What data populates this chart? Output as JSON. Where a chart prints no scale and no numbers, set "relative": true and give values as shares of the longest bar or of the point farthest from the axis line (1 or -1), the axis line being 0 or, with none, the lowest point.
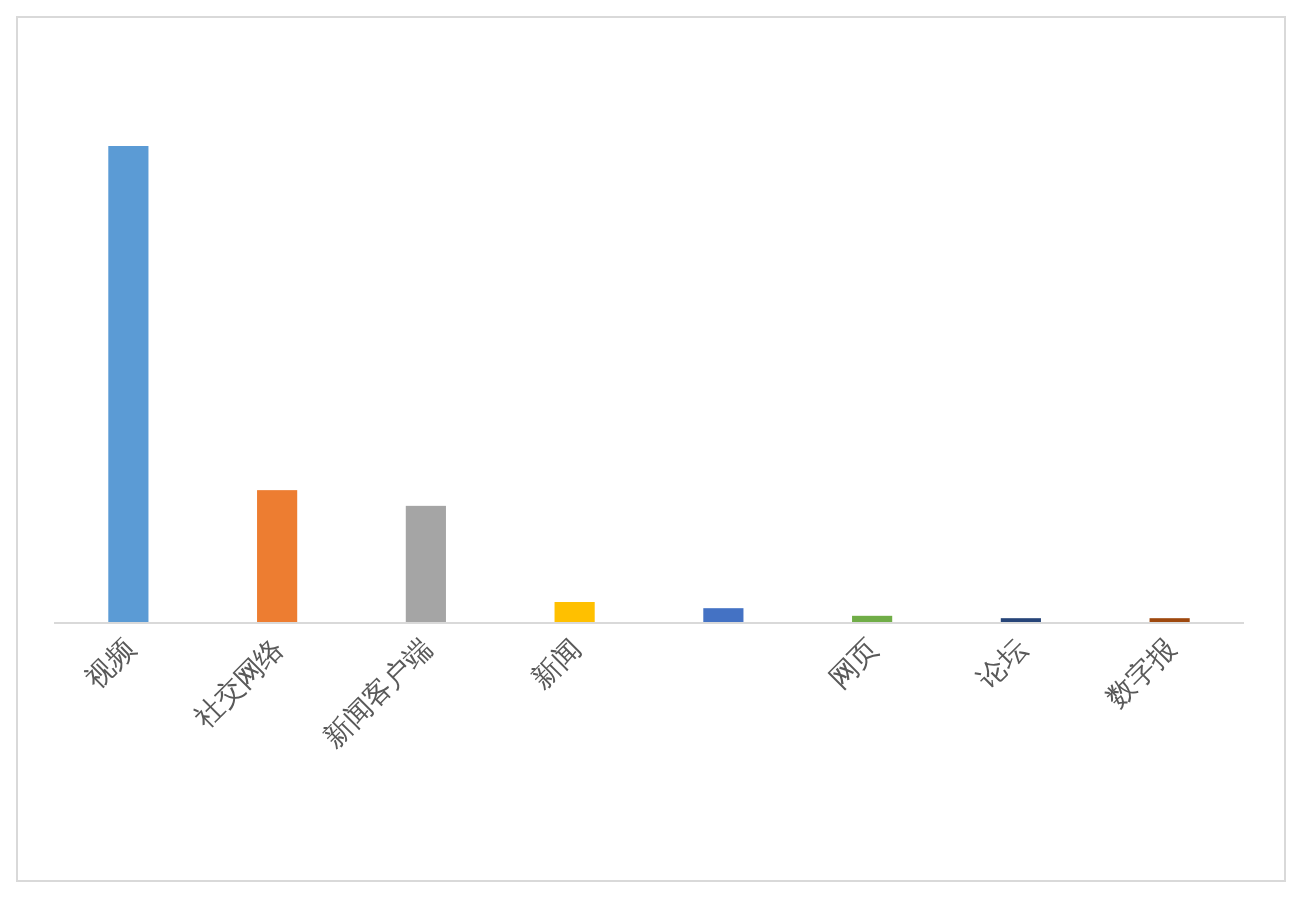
{
  "chart_data": {
    "type": "bar",
    "relative": true,
    "categories": [
      "视频",
      "社交网络",
      "新闻客户端",
      "新闻",
      null,
      "网页",
      "论坛",
      "数字报"
    ],
    "values": [
      1,
      0.277,
      0.244,
      0.042,
      0.029,
      0.013,
      0.008,
      0.008
    ],
    "colors": [
      "#5b9bd5",
      "#ed7d31",
      "#a5a5a5",
      "#ffc000",
      "#4472c4",
      "#70ad47",
      "#264478",
      "#9e480e"
    ]
  }
}
